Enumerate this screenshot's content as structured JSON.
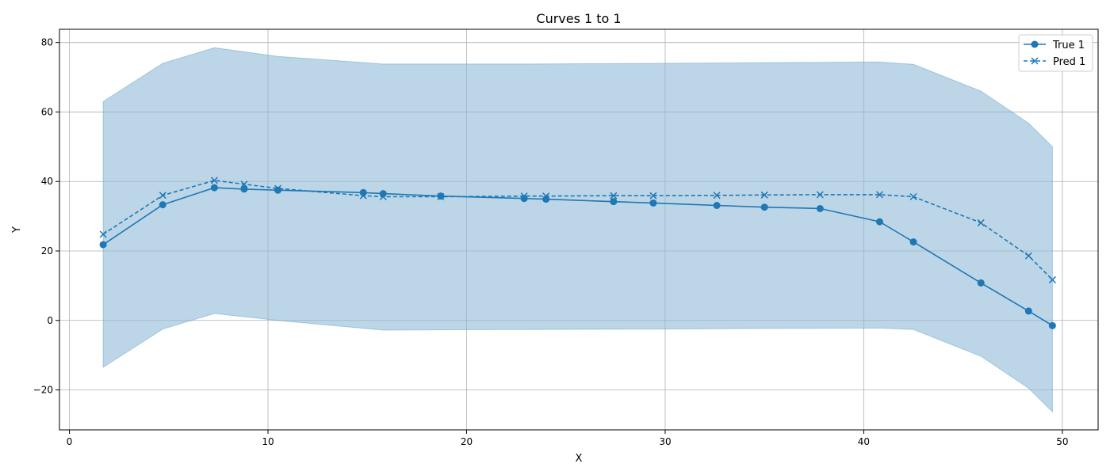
{
  "colors": {
    "series": "#1f77b4",
    "band_fill": "#8fbbd9",
    "grid": "#b0b0b0",
    "axis": "#000000"
  },
  "chart_data": {
    "type": "line",
    "title": "Curves 1 to 1",
    "xlabel": "X",
    "ylabel": "Y",
    "xlim": [
      -0.5,
      51.8
    ],
    "ylim": [
      -31.5,
      83.8
    ],
    "xticks": [
      0,
      10,
      20,
      30,
      40,
      50
    ],
    "yticks": [
      -20,
      0,
      20,
      40,
      60,
      80
    ],
    "grid": true,
    "legend_position": "top-right",
    "band": {
      "x": [
        1.7,
        4.7,
        7.3,
        10.5,
        15.8,
        18.7,
        23.0,
        29.4,
        35.0,
        40.8,
        42.5,
        45.9,
        48.3,
        49.5
      ],
      "upper": [
        63.0,
        74.0,
        78.5,
        76.0,
        73.8,
        73.8,
        73.8,
        74.0,
        74.2,
        74.4,
        73.7,
        66.0,
        56.8,
        50.0
      ],
      "lower": [
        -13.5,
        -2.5,
        2.0,
        0.0,
        -2.8,
        -2.7,
        -2.6,
        -2.5,
        -2.3,
        -2.2,
        -2.6,
        -10.3,
        -19.5,
        -26.3
      ]
    },
    "series": [
      {
        "name": "True 1",
        "style": "solid",
        "marker": "o",
        "x": [
          1.7,
          4.7,
          7.3,
          8.8,
          10.5,
          14.8,
          15.8,
          18.7,
          22.9,
          24.0,
          27.4,
          29.4,
          32.6,
          35.0,
          37.8,
          40.8,
          42.5,
          45.9,
          48.3,
          49.5
        ],
        "y": [
          21.8,
          33.3,
          38.2,
          37.8,
          37.5,
          36.8,
          36.5,
          35.8,
          35.1,
          34.9,
          34.2,
          33.8,
          33.1,
          32.6,
          32.2,
          28.4,
          22.6,
          10.8,
          2.7,
          -1.5
        ]
      },
      {
        "name": "Pred 1",
        "style": "dashed",
        "marker": "x",
        "x": [
          1.7,
          4.7,
          7.3,
          8.8,
          10.5,
          14.8,
          15.8,
          18.7,
          22.9,
          24.0,
          27.4,
          29.4,
          32.6,
          35.0,
          37.8,
          40.8,
          42.5,
          45.9,
          48.3,
          49.5
        ],
        "y": [
          24.8,
          36.0,
          40.3,
          39.2,
          38.0,
          35.9,
          35.6,
          35.6,
          35.8,
          35.8,
          35.9,
          35.9,
          36.0,
          36.1,
          36.2,
          36.2,
          35.6,
          28.1,
          18.6,
          11.7
        ]
      }
    ]
  }
}
